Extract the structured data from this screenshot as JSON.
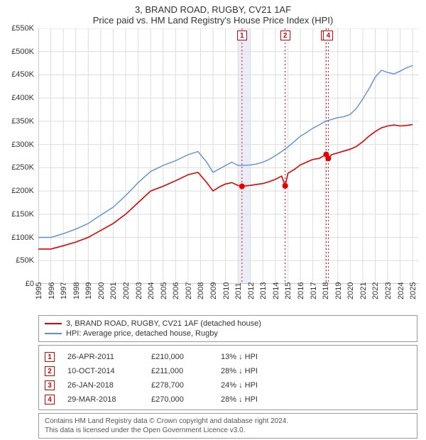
{
  "title": "3, BRAND ROAD, RUGBY, CV21 1AF",
  "subtitle": "Price paid vs. HM Land Registry's House Price Index (HPI)",
  "chart": {
    "type": "line",
    "background_color": "#ffffff",
    "grid_color": "#dddddd",
    "axis_color": "#999999",
    "x_start": 1995,
    "x_end": 2025.5,
    "x_ticks": [
      1995,
      1996,
      1997,
      1998,
      1999,
      2000,
      2001,
      2002,
      2003,
      2004,
      2005,
      2006,
      2007,
      2008,
      2009,
      2010,
      2011,
      2012,
      2013,
      2014,
      2015,
      2016,
      2017,
      2018,
      2019,
      2020,
      2021,
      2022,
      2023,
      2024,
      2025
    ],
    "y_min": 0,
    "y_max": 550,
    "y_ticks": [
      0,
      50,
      100,
      150,
      200,
      250,
      300,
      350,
      400,
      450,
      500,
      550
    ],
    "y_tick_labels": [
      "£0",
      "£50K",
      "£100K",
      "£150K",
      "£200K",
      "£250K",
      "£300K",
      "£350K",
      "£400K",
      "£450K",
      "£500K",
      "£550K"
    ],
    "series": [
      {
        "id": "price_paid",
        "label": "3, BRAND ROAD, RUGBY, CV21 1AF (detached house)",
        "color": "#e60000",
        "width": 1.6,
        "points": [
          [
            1995.0,
            75
          ],
          [
            1996.0,
            75
          ],
          [
            1997.0,
            82
          ],
          [
            1998.0,
            90
          ],
          [
            1999.0,
            100
          ],
          [
            2000.0,
            115
          ],
          [
            2001.0,
            130
          ],
          [
            2002.0,
            150
          ],
          [
            2003.0,
            175
          ],
          [
            2004.0,
            200
          ],
          [
            2005.0,
            210
          ],
          [
            2006.0,
            222
          ],
          [
            2007.0,
            235
          ],
          [
            2007.8,
            240
          ],
          [
            2008.5,
            218
          ],
          [
            2009.0,
            200
          ],
          [
            2009.6,
            210
          ],
          [
            2010.0,
            215
          ],
          [
            2010.5,
            218
          ],
          [
            2011.0,
            212
          ],
          [
            2011.33,
            210
          ],
          [
            2012.0,
            212
          ],
          [
            2013.0,
            216
          ],
          [
            2013.5,
            220
          ],
          [
            2014.0,
            225
          ],
          [
            2014.5,
            232
          ],
          [
            2014.78,
            211
          ],
          [
            2015.0,
            238
          ],
          [
            2015.5,
            246
          ],
          [
            2016.0,
            256
          ],
          [
            2016.5,
            262
          ],
          [
            2017.0,
            268
          ],
          [
            2017.5,
            270
          ],
          [
            2018.07,
            278.7
          ],
          [
            2018.24,
            270
          ],
          [
            2018.5,
            278
          ],
          [
            2019.0,
            282
          ],
          [
            2019.5,
            286
          ],
          [
            2020.0,
            290
          ],
          [
            2020.5,
            296
          ],
          [
            2021.0,
            306
          ],
          [
            2021.5,
            318
          ],
          [
            2022.0,
            328
          ],
          [
            2022.5,
            336
          ],
          [
            2023.0,
            340
          ],
          [
            2023.5,
            342
          ],
          [
            2024.0,
            340
          ],
          [
            2024.5,
            341
          ],
          [
            2025.0,
            343
          ]
        ]
      },
      {
        "id": "hpi",
        "label": "HPI: Average price, detached house, Rugby",
        "color": "#5b8fd6",
        "width": 1.4,
        "points": [
          [
            1995.0,
            100
          ],
          [
            1996.0,
            100
          ],
          [
            1997.0,
            108
          ],
          [
            1998.0,
            118
          ],
          [
            1999.0,
            130
          ],
          [
            2000.0,
            148
          ],
          [
            2001.0,
            165
          ],
          [
            2002.0,
            190
          ],
          [
            2003.0,
            218
          ],
          [
            2004.0,
            242
          ],
          [
            2005.0,
            255
          ],
          [
            2006.0,
            265
          ],
          [
            2007.0,
            278
          ],
          [
            2007.8,
            285
          ],
          [
            2008.5,
            262
          ],
          [
            2009.0,
            240
          ],
          [
            2009.8,
            252
          ],
          [
            2010.5,
            262
          ],
          [
            2011.0,
            255
          ],
          [
            2011.5,
            255
          ],
          [
            2012.0,
            256
          ],
          [
            2012.5,
            258
          ],
          [
            2013.0,
            262
          ],
          [
            2013.5,
            268
          ],
          [
            2014.0,
            276
          ],
          [
            2014.5,
            285
          ],
          [
            2015.0,
            295
          ],
          [
            2015.5,
            306
          ],
          [
            2016.0,
            318
          ],
          [
            2016.5,
            326
          ],
          [
            2017.0,
            335
          ],
          [
            2017.5,
            342
          ],
          [
            2018.0,
            350
          ],
          [
            2018.5,
            354
          ],
          [
            2019.0,
            358
          ],
          [
            2019.5,
            360
          ],
          [
            2020.0,
            365
          ],
          [
            2020.5,
            378
          ],
          [
            2021.0,
            398
          ],
          [
            2021.5,
            420
          ],
          [
            2022.0,
            445
          ],
          [
            2022.5,
            460
          ],
          [
            2023.0,
            455
          ],
          [
            2023.5,
            452
          ],
          [
            2024.0,
            458
          ],
          [
            2024.5,
            465
          ],
          [
            2025.0,
            470
          ]
        ]
      }
    ],
    "sale_markers": [
      {
        "n": "1",
        "x": 2011.32,
        "y": 210,
        "color": "#e60000"
      },
      {
        "n": "2",
        "x": 2014.78,
        "y": 211,
        "color": "#e60000"
      },
      {
        "n": "3",
        "x": 2018.07,
        "y": 278.7,
        "color": "#e60000"
      },
      {
        "n": "4",
        "x": 2018.24,
        "y": 270,
        "color": "#e60000"
      }
    ],
    "price_band": {
      "from": 2011.0,
      "to": 2012.0,
      "color": "#e8edf7"
    },
    "marker_flag_y": 545,
    "marker_flag_size": 14
  },
  "legend": {
    "items": [
      {
        "color": "#e60000",
        "label": "3, BRAND ROAD, RUGBY, CV21 1AF (detached house)"
      },
      {
        "color": "#5b8fd6",
        "label": "HPI: Average price, detached house, Rugby"
      }
    ]
  },
  "sales": [
    {
      "n": "1",
      "color": "#e60000",
      "date": "26-APR-2011",
      "price": "£210,000",
      "diff": "13% ↓ HPI"
    },
    {
      "n": "2",
      "color": "#e60000",
      "date": "10-OCT-2014",
      "price": "£211,000",
      "diff": "28% ↓ HPI"
    },
    {
      "n": "3",
      "color": "#e60000",
      "date": "26-JAN-2018",
      "price": "£278,700",
      "diff": "24% ↓ HPI"
    },
    {
      "n": "4",
      "color": "#e60000",
      "date": "29-MAR-2018",
      "price": "£270,000",
      "diff": "28% ↓ HPI"
    }
  ],
  "footer": {
    "line1": "Contains HM Land Registry data © Crown copyright and database right 2024.",
    "line2": "This data is licensed under the Open Government Licence v3.0."
  }
}
